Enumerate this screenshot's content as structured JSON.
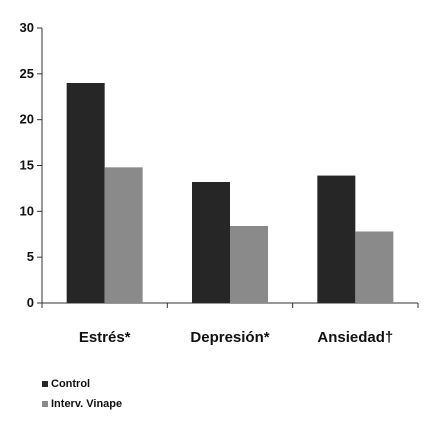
{
  "chart_data": {
    "type": "bar",
    "title": "",
    "xlabel": "",
    "ylabel": "",
    "categories": [
      "Estrés*",
      "Depresión*",
      "Ansiedad†"
    ],
    "series": [
      {
        "name": "Control",
        "values": [
          24.0,
          13.2,
          13.9
        ],
        "color": "#262626"
      },
      {
        "name": "Interv. Vinape",
        "values": [
          14.8,
          8.4,
          7.8
        ],
        "color": "#8a8a8a"
      }
    ],
    "ylim": [
      0,
      30
    ],
    "yticks": [
      "0",
      "5",
      "10",
      "15",
      "20",
      "25",
      "30"
    ],
    "grid": false,
    "legend": "bottom-left"
  }
}
